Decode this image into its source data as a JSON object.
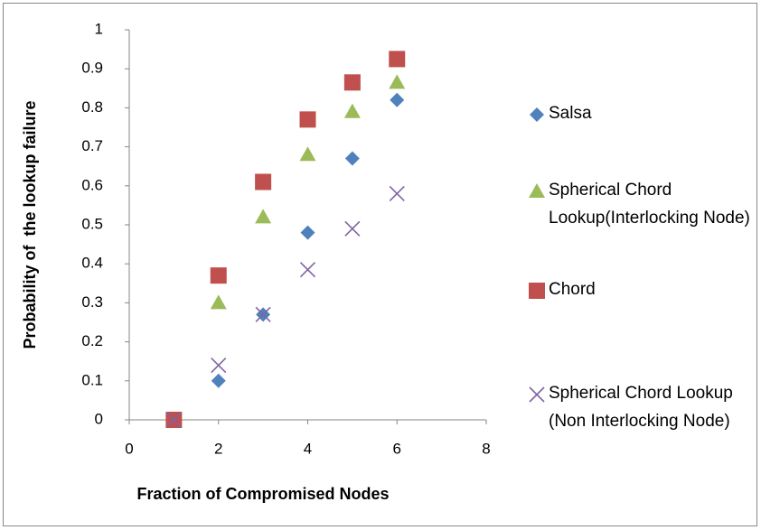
{
  "chart_data": {
    "type": "scatter",
    "x_label": "Fraction of Compromised Nodes",
    "y_label": "Probability of  the lookup failure",
    "x": [
      1,
      2,
      3,
      4,
      5,
      6
    ],
    "series": [
      {
        "name": "Salsa",
        "color": "#4f81bd",
        "marker": "diamond",
        "values": [
          0,
          0.1,
          0.27,
          0.48,
          0.67,
          0.82
        ]
      },
      {
        "name": "Spherical Chord Lookup(Interlocking Node)",
        "color": "#9bbb59",
        "marker": "triangle",
        "values": [
          0,
          0.3,
          0.52,
          0.68,
          0.79,
          0.865
        ]
      },
      {
        "name": "Chord",
        "color": "#c0504d",
        "marker": "square",
        "values": [
          0,
          0.37,
          0.61,
          0.77,
          0.865,
          0.925
        ]
      },
      {
        "name": "Spherical Chord Lookup (Non Interlocking Node)",
        "color": "#8064a2",
        "marker": "x",
        "values": [
          0,
          0.14,
          0.27,
          0.385,
          0.49,
          0.58
        ]
      }
    ],
    "xlim": [
      0,
      8
    ],
    "xticks": [
      0,
      2,
      4,
      6,
      8
    ],
    "ylim": [
      0,
      1
    ],
    "yticks": [
      0,
      0.1,
      0.2,
      0.3,
      0.4,
      0.5,
      0.6,
      0.7,
      0.8,
      0.9,
      1
    ],
    "grid": false,
    "legend": "right"
  }
}
